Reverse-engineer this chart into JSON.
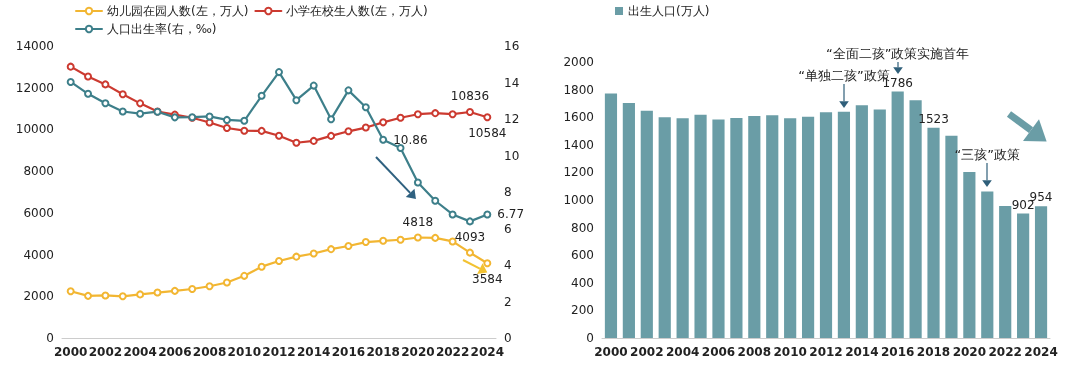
{
  "chart_data": [
    {
      "type": "line",
      "x": [
        2000,
        2001,
        2002,
        2003,
        2004,
        2005,
        2006,
        2007,
        2008,
        2009,
        2010,
        2011,
        2012,
        2013,
        2014,
        2015,
        2016,
        2017,
        2018,
        2019,
        2020,
        2021,
        2022,
        2023,
        2024
      ],
      "xlim": [
        1999.5,
        2024.5
      ],
      "xticks": [
        2000,
        2002,
        2004,
        2006,
        2008,
        2010,
        2012,
        2014,
        2016,
        2018,
        2020,
        2022,
        2024
      ],
      "ylim": [
        0,
        14000
      ],
      "yticks": [
        0,
        2000,
        4000,
        6000,
        8000,
        10000,
        12000,
        14000
      ],
      "y2lim": [
        0,
        16
      ],
      "y2ticks": [
        0,
        2,
        4,
        6,
        8,
        10,
        12,
        14,
        16
      ],
      "grid": false,
      "legend": "top left",
      "marker": "circle",
      "line_style": "solid",
      "series": [
        {
          "name": "幼儿园在园人数(左，万人)",
          "color": "#f2b632",
          "values": [
            2240,
            2020,
            2040,
            2000,
            2090,
            2180,
            2260,
            2350,
            2480,
            2660,
            2980,
            3420,
            3690,
            3900,
            4050,
            4260,
            4410,
            4600,
            4660,
            4710,
            4818,
            4800,
            4630,
            4093,
            3584
          ],
          "value_labels": [
            null,
            null,
            null,
            null,
            null,
            null,
            null,
            null,
            null,
            null,
            null,
            null,
            null,
            null,
            null,
            null,
            null,
            null,
            null,
            null,
            "4818",
            null,
            null,
            "4093",
            "3584"
          ]
        },
        {
          "name": "小学在校生人数(左，万人)",
          "color": "#cc3a30",
          "values": [
            13010,
            12540,
            12160,
            11690,
            11250,
            10860,
            10710,
            10560,
            10330,
            10070,
            9940,
            9930,
            9700,
            9360,
            9450,
            9690,
            9910,
            10090,
            10340,
            10560,
            10730,
            10780,
            10730,
            10836,
            10584
          ],
          "value_labels": [
            null,
            null,
            null,
            null,
            null,
            null,
            null,
            null,
            null,
            null,
            null,
            null,
            null,
            null,
            null,
            null,
            null,
            null,
            null,
            null,
            null,
            null,
            null,
            "10836",
            "10584"
          ]
        },
        {
          "name": "人口出生率(右，‰)",
          "color": "#3d7f8a",
          "axis": "y2",
          "values": [
            14.03,
            13.38,
            12.86,
            12.41,
            12.29,
            12.4,
            12.09,
            12.1,
            12.14,
            11.95,
            11.9,
            13.27,
            14.57,
            13.03,
            13.83,
            11.99,
            13.57,
            12.64,
            10.86,
            10.41,
            8.52,
            7.52,
            6.77,
            6.39,
            6.77
          ],
          "value_labels": [
            null,
            null,
            null,
            null,
            null,
            null,
            null,
            null,
            null,
            null,
            null,
            null,
            null,
            null,
            null,
            null,
            null,
            null,
            "10.86",
            null,
            null,
            null,
            null,
            null,
            "6.77"
          ]
        }
      ]
    },
    {
      "type": "bar",
      "x": [
        2000,
        2001,
        2002,
        2003,
        2004,
        2005,
        2006,
        2007,
        2008,
        2009,
        2010,
        2011,
        2012,
        2013,
        2014,
        2015,
        2016,
        2017,
        2018,
        2019,
        2020,
        2021,
        2022,
        2023,
        2024
      ],
      "xlim": [
        1999.5,
        2024.5
      ],
      "xticks": [
        2000,
        2002,
        2004,
        2006,
        2008,
        2010,
        2012,
        2014,
        2016,
        2018,
        2020,
        2022,
        2024
      ],
      "ylim": [
        0,
        2000
      ],
      "yticks": [
        0,
        200,
        400,
        600,
        800,
        1000,
        1200,
        1400,
        1600,
        1800,
        2000
      ],
      "grid": false,
      "legend": "top left",
      "series": [
        {
          "name": "出生人口(万人)",
          "color": "#6a9da6",
          "values": [
            1771,
            1702,
            1647,
            1599,
            1593,
            1617,
            1584,
            1594,
            1608,
            1615,
            1592,
            1604,
            1635,
            1640,
            1687,
            1655,
            1786,
            1723,
            1523,
            1465,
            1202,
            1062,
            956,
            902,
            954
          ],
          "value_labels": [
            null,
            null,
            null,
            null,
            null,
            null,
            null,
            null,
            null,
            null,
            null,
            null,
            null,
            null,
            null,
            null,
            "1786",
            null,
            "1523",
            null,
            null,
            null,
            null,
            "902",
            "954"
          ]
        }
      ],
      "annotations": [
        {
          "text": "“单独二孩”政策",
          "x": 2013,
          "y": 1640
        },
        {
          "text": "“全面二孩”政策实施首年",
          "x": 2016,
          "y": 1786
        },
        {
          "text": "“三孩”政策",
          "x": 2021,
          "y": 1062
        }
      ]
    }
  ]
}
